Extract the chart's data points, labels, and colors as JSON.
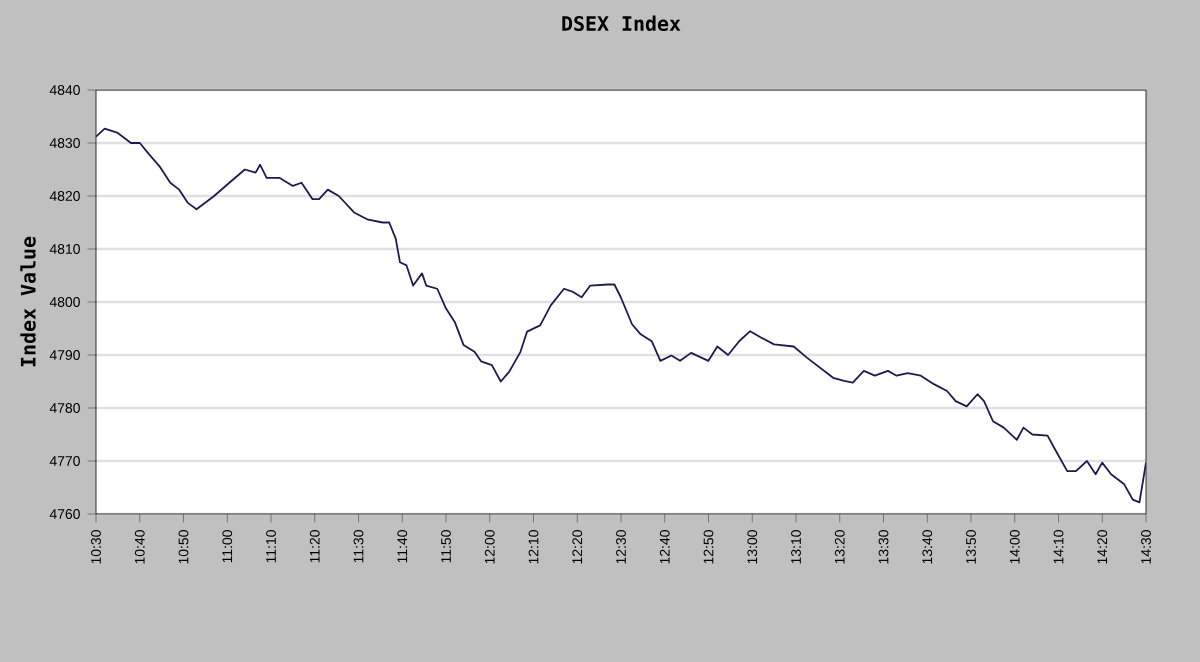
{
  "chart_data": {
    "type": "line",
    "title": "DSEX Index",
    "ylabel": "Index Value",
    "x": [
      10.5,
      10.533,
      10.583,
      10.633,
      10.667,
      10.7,
      10.742,
      10.783,
      10.817,
      10.85,
      10.883,
      10.95,
      11.008,
      11.067,
      11.108,
      11.125,
      11.15,
      11.2,
      11.25,
      11.283,
      11.325,
      11.35,
      11.383,
      11.425,
      11.483,
      11.533,
      11.592,
      11.617,
      11.642,
      11.658,
      11.683,
      11.708,
      11.742,
      11.758,
      11.8,
      11.833,
      11.867,
      11.9,
      11.942,
      11.967,
      12.008,
      12.042,
      12.075,
      12.117,
      12.142,
      12.192,
      12.233,
      12.283,
      12.317,
      12.35,
      12.383,
      12.45,
      12.475,
      12.5,
      12.542,
      12.575,
      12.617,
      12.65,
      12.692,
      12.725,
      12.767,
      12.833,
      12.867,
      12.908,
      12.95,
      12.992,
      13.033,
      13.083,
      13.158,
      13.208,
      13.258,
      13.308,
      13.35,
      13.383,
      13.425,
      13.467,
      13.517,
      13.55,
      13.592,
      13.642,
      13.692,
      13.742,
      13.775,
      13.817,
      13.858,
      13.883,
      13.917,
      13.958,
      14.008,
      14.033,
      14.067,
      14.125,
      14.15,
      14.2,
      14.233,
      14.275,
      14.308,
      14.333,
      14.367,
      14.417,
      14.45,
      14.475,
      14.5
    ],
    "series": [
      {
        "color": "#1c1c50",
        "values": [
          4831.2,
          4832.7,
          4831.9,
          4830,
          4830,
          4828,
          4825.6,
          4822.5,
          4821.2,
          4818.7,
          4817.5,
          4820,
          4822.5,
          4825,
          4824.4,
          4825.9,
          4823.4,
          4823.4,
          4821.9,
          4822.5,
          4819.4,
          4819.4,
          4821.2,
          4820,
          4816.9,
          4815.6,
          4815,
          4815,
          4811.9,
          4807.5,
          4806.9,
          4803.1,
          4805.4,
          4803.1,
          4802.5,
          4798.8,
          4796.2,
          4791.9,
          4790.6,
          4788.8,
          4788.1,
          4785,
          4786.9,
          4790.6,
          4794.4,
          4795.6,
          4799.4,
          4802.5,
          4801.9,
          4800.9,
          4803.1,
          4803.3,
          4803.3,
          4800.8,
          4795.8,
          4793.9,
          4792.6,
          4788.9,
          4789.9,
          4788.9,
          4790.4,
          4788.9,
          4791.6,
          4790,
          4792.6,
          4794.5,
          4793.3,
          4792,
          4791.6,
          4789.5,
          4787.6,
          4785.7,
          4785.1,
          4784.8,
          4787,
          4786.1,
          4787,
          4786.1,
          4786.6,
          4786.1,
          4784.5,
          4783.2,
          4781.3,
          4780.3,
          4782.6,
          4781.3,
          4777.5,
          4776.3,
          4774,
          4776.3,
          4775,
          4774.8,
          4772.5,
          4768.1,
          4768.1,
          4770,
          4767.5,
          4769.7,
          4767.5,
          4765.6,
          4762.7,
          4762.2,
          4769.7
        ]
      }
    ],
    "xlim": [
      10.5,
      14.5
    ],
    "xticks": [
      {
        "value": 10.5,
        "label": "10:30"
      },
      {
        "value": 10.6667,
        "label": "10:40"
      },
      {
        "value": 10.8333,
        "label": "10:50"
      },
      {
        "value": 11,
        "label": "11:00"
      },
      {
        "value": 11.1667,
        "label": "11:10"
      },
      {
        "value": 11.3333,
        "label": "11:20"
      },
      {
        "value": 11.5,
        "label": "11:30"
      },
      {
        "value": 11.6667,
        "label": "11:40"
      },
      {
        "value": 11.8333,
        "label": "11:50"
      },
      {
        "value": 12,
        "label": "12:00"
      },
      {
        "value": 12.1667,
        "label": "12:10"
      },
      {
        "value": 12.3333,
        "label": "12:20"
      },
      {
        "value": 12.5,
        "label": "12:30"
      },
      {
        "value": 12.6667,
        "label": "12:40"
      },
      {
        "value": 12.8333,
        "label": "12:50"
      },
      {
        "value": 13,
        "label": "13:00"
      },
      {
        "value": 13.1667,
        "label": "13:10"
      },
      {
        "value": 13.3333,
        "label": "13:20"
      },
      {
        "value": 13.5,
        "label": "13:30"
      },
      {
        "value": 13.6667,
        "label": "13:40"
      },
      {
        "value": 13.8333,
        "label": "13:50"
      },
      {
        "value": 14,
        "label": "14:00"
      },
      {
        "value": 14.1667,
        "label": "14:10"
      },
      {
        "value": 14.3333,
        "label": "14:20"
      },
      {
        "value": 14.5,
        "label": "14:30"
      }
    ],
    "ylim": [
      4760,
      4840
    ],
    "yticks": [
      4760,
      4770,
      4780,
      4790,
      4800,
      4810,
      4820,
      4830,
      4840
    ],
    "grid": "y",
    "marker": "none",
    "line_style": "solid"
  }
}
